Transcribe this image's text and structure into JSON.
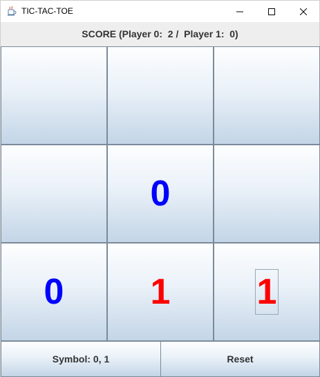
{
  "window": {
    "title": "TIC-TAC-TOE",
    "app_icon": "java-cup-icon",
    "controls": [
      "minimize-icon",
      "maximize-icon",
      "close-icon"
    ]
  },
  "score": {
    "label": "SCORE (Player 0:  2 /  Player 1:  0)"
  },
  "board": {
    "cells": [
      "",
      "",
      "",
      "",
      "0",
      "",
      "0",
      "1",
      "1"
    ],
    "focused_cell": 8
  },
  "colors": {
    "player0": "#0000ff",
    "player1": "#ff0000",
    "grid_line": "#7a8a99"
  },
  "bottom": {
    "symbol_label": "Symbol: 0, 1",
    "reset_label": "Reset"
  }
}
